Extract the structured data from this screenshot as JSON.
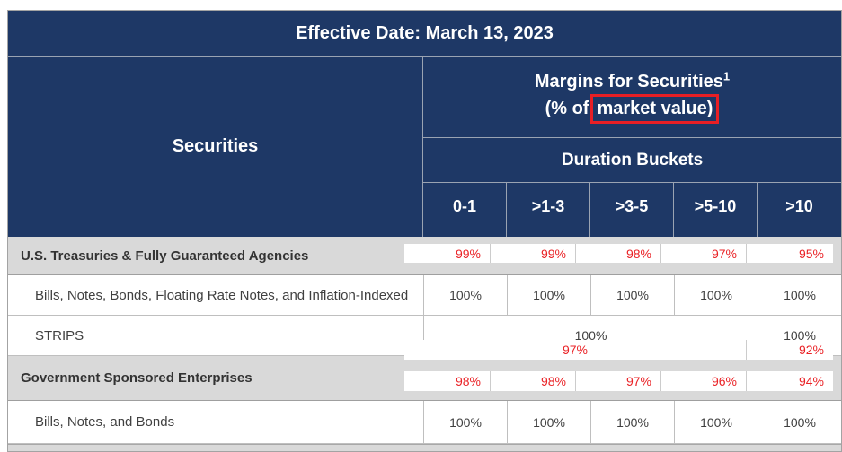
{
  "banner": {
    "effective_date": "Effective Date: March 13, 2023"
  },
  "header": {
    "securities_label": "Securities",
    "margins_title": "Margins for Securities",
    "margins_superscript": "1",
    "margins_sub_prefix": "(% of",
    "margins_sub_highlighted": "market value)",
    "duration_label": "Duration Buckets",
    "buckets": [
      "0-1",
      ">1-3",
      ">3-5",
      ">5-10",
      ">10"
    ]
  },
  "rows": [
    {
      "type": "group",
      "label": "U.S. Treasuries & Fully Guaranteed Agencies"
    },
    {
      "type": "item",
      "label": "Bills, Notes, Bonds, Floating Rate Notes, and Inflation-Indexed",
      "values": [
        "100%",
        "100%",
        "100%",
        "100%",
        "100%"
      ]
    },
    {
      "type": "item",
      "label": "STRIPS",
      "value_span_0_1_to_5_10": "100%",
      "value_over_10": "100%"
    },
    {
      "type": "group",
      "label": "Government Sponsored Enterprises"
    },
    {
      "type": "item",
      "label": "Bills, Notes, and Bonds",
      "values": [
        "100%",
        "100%",
        "100%",
        "100%",
        "100%"
      ]
    }
  ],
  "red_overlays": [
    {
      "position": "bottom of U.S. Treasuries & Fully Guaranteed Agencies row",
      "values": [
        "99%",
        "99%",
        "98%",
        "97%",
        "95%"
      ]
    },
    {
      "position": "between STRIPS and Government Sponsored Enterprises rows",
      "value_span_0_1_to_5_10": "97%",
      "value_over_10": "92%"
    },
    {
      "position": "bottom of Government Sponsored Enterprises row",
      "values": [
        "98%",
        "98%",
        "97%",
        "96%",
        "94%"
      ]
    }
  ],
  "colors": {
    "header_navy": "#1e3866",
    "group_row_gray": "#d9d9d9",
    "overlay_value_red": "#ea2327",
    "annotation_box_red": "#e81f25",
    "cell_border_gray": "#bfbfbf",
    "body_text": "#404040"
  }
}
